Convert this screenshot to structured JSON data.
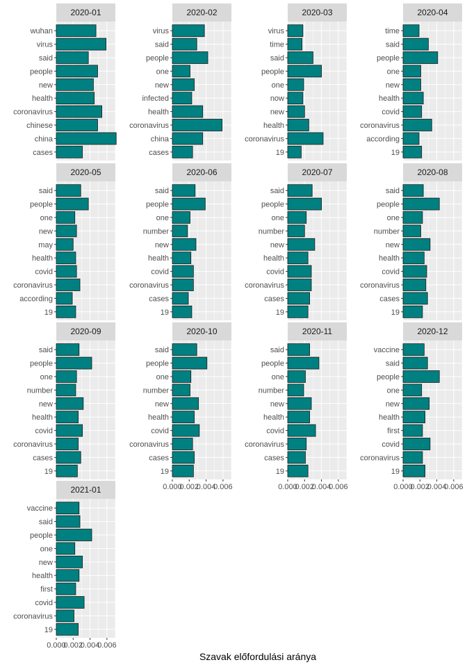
{
  "chart_data": {
    "type": "bar",
    "orientation": "horizontal",
    "xlabel": "Szavak előfordulási aránya",
    "ylabel": "",
    "xlim": [
      0,
      0.007
    ],
    "x_ticks": [
      "0.000",
      "0.002",
      "0.004",
      "0.006"
    ],
    "x_tick_values": [
      0,
      0.002,
      0.004,
      0.006
    ],
    "grid": true,
    "colors": {
      "bar_fill": "#008080",
      "bar_stroke": "#1a1a1a",
      "panel_bg": "#ebebeb",
      "strip_bg": "#d9d9d9",
      "grid": "#ffffff"
    },
    "panels": [
      {
        "title": "2020-01",
        "categories": [
          "wuhan",
          "virus",
          "said",
          "people",
          "new",
          "health",
          "coronavirus",
          "chinese",
          "china",
          "cases"
        ],
        "values": [
          0.0047,
          0.0059,
          0.0038,
          0.0049,
          0.0044,
          0.0045,
          0.0054,
          0.0049,
          0.0071,
          0.0031
        ]
      },
      {
        "title": "2020-02",
        "categories": [
          "virus",
          "said",
          "people",
          "one",
          "new",
          "infected",
          "health",
          "coronavirus",
          "china",
          "cases"
        ],
        "values": [
          0.0038,
          0.0029,
          0.0042,
          0.0021,
          0.0026,
          0.0023,
          0.0036,
          0.0059,
          0.0036,
          0.0024
        ]
      },
      {
        "title": "2020-03",
        "categories": [
          "virus",
          "time",
          "said",
          "people",
          "one",
          "now",
          "new",
          "health",
          "coronavirus",
          "19"
        ],
        "values": [
          0.0018,
          0.0017,
          0.003,
          0.004,
          0.0019,
          0.0018,
          0.002,
          0.0025,
          0.0042,
          0.0016
        ]
      },
      {
        "title": "2020-04",
        "categories": [
          "time",
          "said",
          "people",
          "one",
          "new",
          "health",
          "covid",
          "coronavirus",
          "according",
          "19"
        ],
        "values": [
          0.0019,
          0.003,
          0.0041,
          0.0021,
          0.0021,
          0.0024,
          0.0022,
          0.0034,
          0.0019,
          0.0022
        ]
      },
      {
        "title": "2020-05",
        "categories": [
          "said",
          "people",
          "one",
          "new",
          "may",
          "health",
          "covid",
          "coronavirus",
          "according",
          "19"
        ],
        "values": [
          0.0029,
          0.0038,
          0.0022,
          0.0024,
          0.002,
          0.0023,
          0.0024,
          0.0028,
          0.0019,
          0.0023
        ]
      },
      {
        "title": "2020-06",
        "categories": [
          "said",
          "people",
          "one",
          "number",
          "new",
          "health",
          "covid",
          "coronavirus",
          "cases",
          "19"
        ],
        "values": [
          0.0027,
          0.0039,
          0.0021,
          0.0018,
          0.0028,
          0.0022,
          0.0025,
          0.0025,
          0.0019,
          0.0023
        ]
      },
      {
        "title": "2020-07",
        "categories": [
          "said",
          "people",
          "one",
          "number",
          "new",
          "health",
          "covid",
          "coronavirus",
          "cases",
          "19"
        ],
        "values": [
          0.0029,
          0.004,
          0.0022,
          0.002,
          0.0032,
          0.0024,
          0.0028,
          0.0028,
          0.0026,
          0.0024
        ]
      },
      {
        "title": "2020-08",
        "categories": [
          "said",
          "people",
          "one",
          "number",
          "new",
          "health",
          "covid",
          "coronavirus",
          "cases",
          "19"
        ],
        "values": [
          0.0024,
          0.0043,
          0.0023,
          0.0021,
          0.0032,
          0.0025,
          0.0028,
          0.0027,
          0.0029,
          0.0023
        ]
      },
      {
        "title": "2020-09",
        "categories": [
          "said",
          "people",
          "one",
          "number",
          "new",
          "health",
          "covid",
          "coronavirus",
          "cases",
          "19"
        ],
        "values": [
          0.0027,
          0.0042,
          0.0024,
          0.0023,
          0.0032,
          0.0026,
          0.0031,
          0.0026,
          0.0029,
          0.0025
        ]
      },
      {
        "title": "2020-10",
        "categories": [
          "said",
          "people",
          "one",
          "number",
          "new",
          "health",
          "covid",
          "coronavirus",
          "cases",
          "19"
        ],
        "values": [
          0.0029,
          0.0041,
          0.0022,
          0.0021,
          0.0031,
          0.0026,
          0.0032,
          0.0024,
          0.0026,
          0.0025
        ]
      },
      {
        "title": "2020-11",
        "categories": [
          "said",
          "people",
          "one",
          "number",
          "new",
          "health",
          "covid",
          "coronavirus",
          "cases",
          "19"
        ],
        "values": [
          0.0026,
          0.0037,
          0.0021,
          0.0019,
          0.0028,
          0.0026,
          0.0033,
          0.0022,
          0.0021,
          0.0024
        ]
      },
      {
        "title": "2020-12",
        "categories": [
          "vaccine",
          "said",
          "people",
          "one",
          "new",
          "health",
          "first",
          "covid",
          "coronavirus",
          "19"
        ],
        "values": [
          0.0025,
          0.0029,
          0.0043,
          0.0022,
          0.0031,
          0.0026,
          0.0023,
          0.0032,
          0.0023,
          0.0026
        ]
      },
      {
        "title": "2021-01",
        "categories": [
          "vaccine",
          "said",
          "people",
          "one",
          "new",
          "health",
          "first",
          "covid",
          "coronavirus",
          "19"
        ],
        "values": [
          0.0027,
          0.0028,
          0.0042,
          0.0022,
          0.0031,
          0.0027,
          0.0023,
          0.0033,
          0.0021,
          0.0026
        ]
      }
    ]
  }
}
